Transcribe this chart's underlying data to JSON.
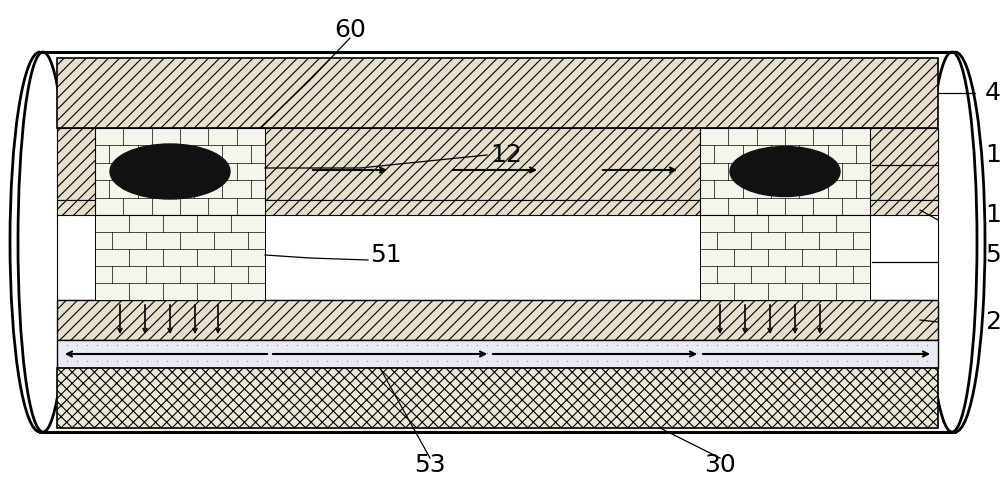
{
  "bg_color": "#ffffff",
  "label_color": "#000000",
  "fig_width": 10.0,
  "fig_height": 4.82,
  "hatch_fc": "#e8e0cc",
  "crosshatch_fc": "#ede8d8",
  "brick_fc": "#f5f5ec",
  "dot_fc": "#eaeaf5",
  "white_fc": "#ffffff",
  "black": "#000000"
}
